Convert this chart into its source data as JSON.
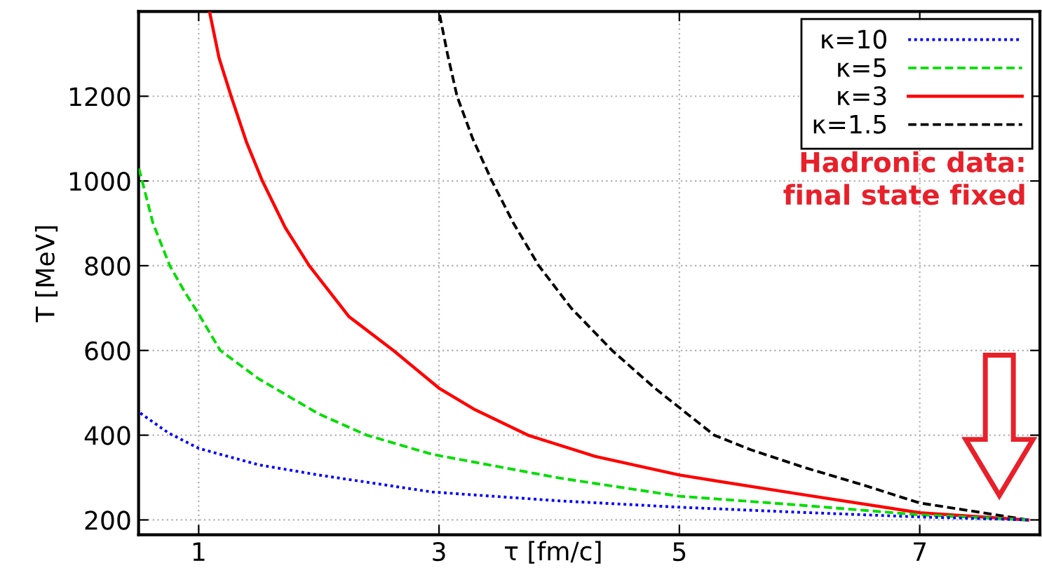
{
  "chart_data": {
    "type": "line",
    "xlabel": "τ [fm/c]",
    "ylabel": "T [MeV]",
    "xlim": [
      0.5,
      8
    ],
    "ylim": [
      165,
      1400
    ],
    "xticks": [
      1,
      3,
      5,
      7
    ],
    "yticks": [
      200,
      400,
      600,
      800,
      1000,
      1200
    ],
    "grid": true,
    "legend": "top right",
    "marker": "none",
    "series": [
      {
        "name": "κ=10",
        "color": "#0000ff",
        "line_style": "dotted",
        "x": [
          0.5,
          0.75,
          1,
          1.5,
          2,
          2.94,
          4,
          5,
          6,
          7,
          7.9
        ],
        "values": [
          455,
          405,
          369,
          330,
          306,
          266,
          245,
          230,
          218,
          207,
          200
        ]
      },
      {
        "name": "κ=5",
        "color": "#00dd00",
        "line_style": "dashed",
        "x": [
          0.5,
          0.62,
          0.76,
          0.88,
          1,
          1.18,
          1.5,
          2,
          2.4,
          2.94,
          4,
          5,
          6,
          7,
          7.9
        ],
        "values": [
          1033,
          900,
          800,
          740,
          686,
          600,
          533,
          450,
          400,
          355,
          299,
          256,
          235,
          212,
          200
        ]
      },
      {
        "name": "κ=3",
        "color": "#ff0000",
        "line_style": "solid",
        "x": [
          1.09,
          1.17,
          1.27,
          1.4,
          1.53,
          1.72,
          1.92,
          2.25,
          2.62,
          3,
          3.3,
          3.74,
          4.3,
          5,
          6,
          7,
          7.9
        ],
        "values": [
          1400,
          1290,
          1200,
          1090,
          1000,
          890,
          800,
          680,
          600,
          511,
          460,
          400,
          350,
          306,
          261,
          217,
          200
        ]
      },
      {
        "name": "κ=1.5",
        "color": "#000000",
        "line_style": "dashed",
        "x": [
          3.0,
          3.07,
          3.15,
          3.28,
          3.44,
          3.62,
          3.83,
          4.1,
          4.44,
          4.8,
          5.29,
          5.6,
          6.06,
          6.5,
          7,
          7.5,
          7.9
        ],
        "values": [
          1400,
          1300,
          1200,
          1100,
          1000,
          900,
          800,
          700,
          600,
          510,
          400,
          365,
          322,
          285,
          240,
          218,
          200
        ]
      }
    ],
    "annotations": [
      "Hadronic data:\nfinal state fixed"
    ]
  }
}
